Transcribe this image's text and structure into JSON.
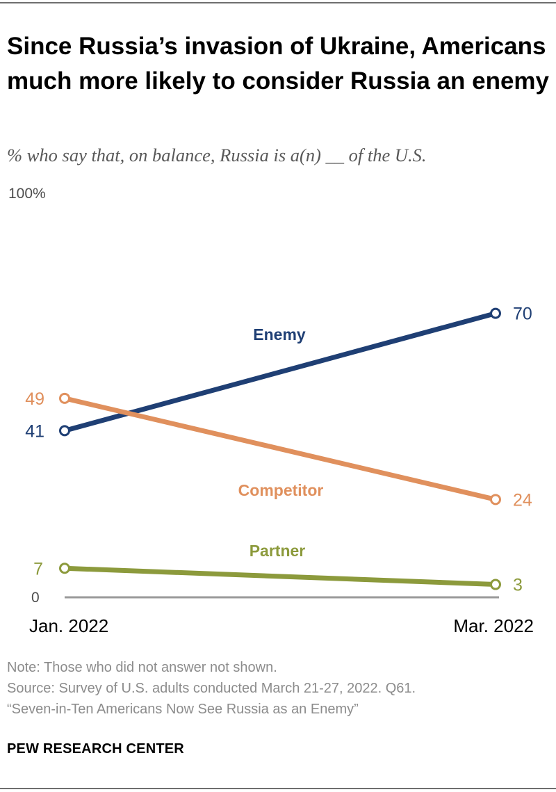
{
  "header": {
    "title": "Since Russia’s invasion of Ukraine, Americans much more likely to consider Russia an enemy",
    "subtitle": "% who say that, on balance, Russia is a(n) __ of the U.S."
  },
  "chart_data": {
    "type": "line",
    "title": "Since Russia’s invasion of Ukraine, Americans much more likely to consider Russia an enemy",
    "subtitle": "% who say that, on balance, Russia is a(n) __ of the U.S.",
    "x": [
      "Jan. 2022",
      "Mar. 2022"
    ],
    "ylim": [
      0,
      100
    ],
    "y_ticks": [
      "0",
      "100%"
    ],
    "grid": false,
    "legend": "inline labels",
    "series": [
      {
        "name": "Enemy",
        "values": [
          41,
          70
        ],
        "value_labels": [
          "41",
          "70"
        ],
        "color": "#1f3f74"
      },
      {
        "name": "Competitor",
        "values": [
          49,
          24
        ],
        "value_labels": [
          "49",
          "24"
        ],
        "color": "#e0905d"
      },
      {
        "name": "Partner",
        "values": [
          7,
          3
        ],
        "value_labels": [
          "7",
          "3"
        ],
        "color": "#8c9a3c"
      }
    ]
  },
  "footer": {
    "note": "Note: Those who did not answer not shown.",
    "source": "Source: Survey of U.S. adults conducted March 21-27, 2022. Q61.",
    "report": "“Seven-in-Ten Americans Now See Russia as an Enemy”",
    "brand": "PEW RESEARCH CENTER"
  },
  "colors": {
    "axis": "#9a9a9a",
    "tick_text": "#4d4d4d",
    "subtitle": "#595959",
    "note": "#8c8c8c"
  }
}
